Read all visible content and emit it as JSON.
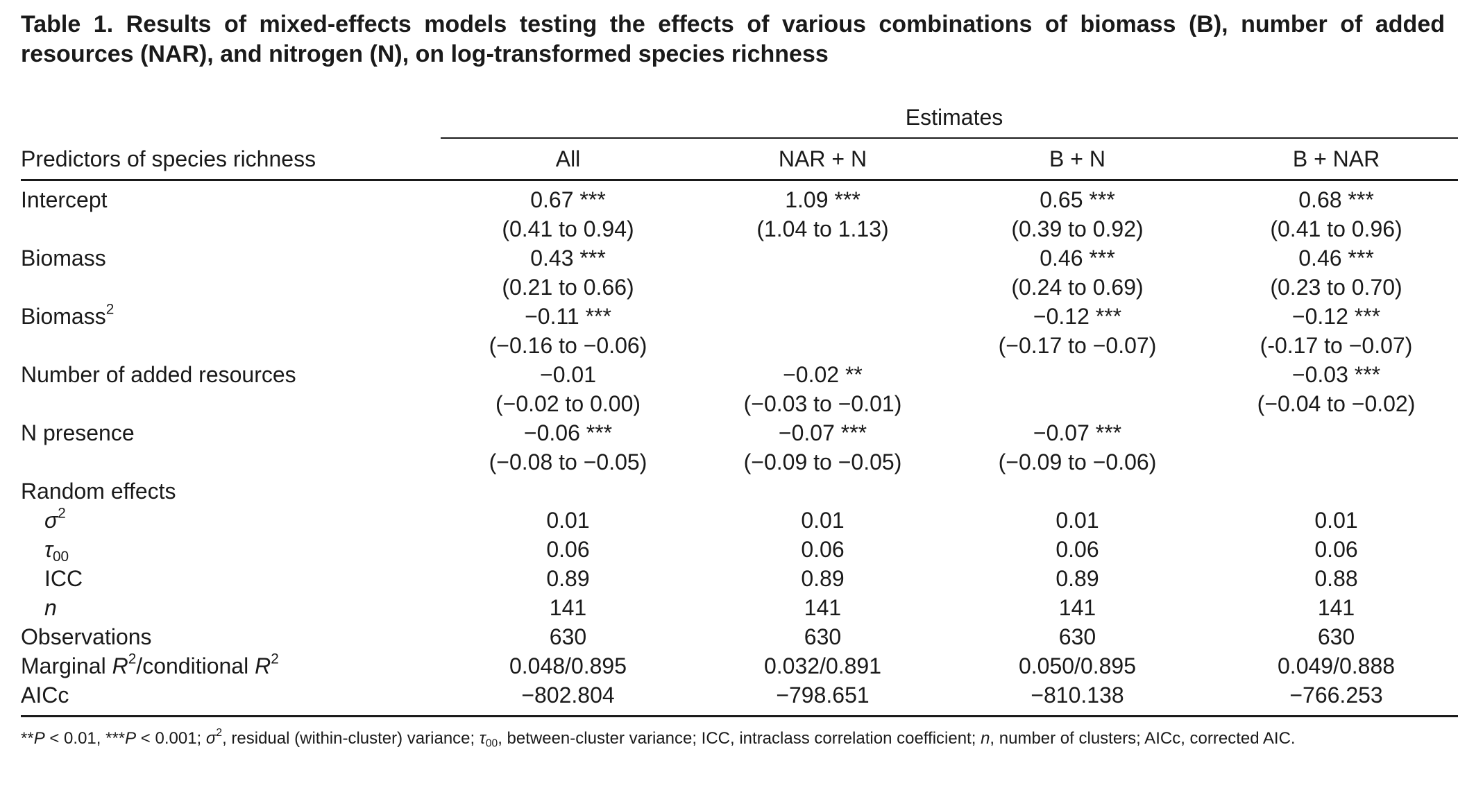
{
  "title": "Table 1. Results of mixed-effects models testing the effects of various combinations of biomass (B), number of added resources (NAR), and nitrogen (N), on log-transformed species richness",
  "header": {
    "group_label": "Estimates",
    "first_col": "Predictors of species richness",
    "columns": [
      "All",
      "NAR + N",
      "B + N",
      "B + NAR"
    ]
  },
  "rows": {
    "intercept": {
      "label": "Intercept",
      "est": [
        "0.67 ***",
        "1.09 ***",
        "0.65 ***",
        "0.68 ***"
      ],
      "ci": [
        "(0.41 to 0.94)",
        "(1.04 to 1.13)",
        "(0.39 to 0.92)",
        "(0.41 to 0.96)"
      ]
    },
    "biomass": {
      "label": "Biomass",
      "est": [
        "0.43 ***",
        "",
        "0.46 ***",
        "0.46 ***"
      ],
      "ci": [
        "(0.21 to 0.66)",
        "",
        "(0.24 to 0.69)",
        "(0.23 to 0.70)"
      ]
    },
    "biomass2": {
      "label": "Biomass",
      "sup": "2",
      "est": [
        "−0.11 ***",
        "",
        "−0.12 ***",
        "−0.12 ***"
      ],
      "ci": [
        "(−0.16 to −0.06)",
        "",
        "(−0.17 to −0.07)",
        "(-0.17 to −0.07)"
      ]
    },
    "nar": {
      "label": "Number of added resources",
      "est": [
        "−0.01",
        "−0.02 **",
        "",
        "−0.03 ***"
      ],
      "ci": [
        "(−0.02 to 0.00)",
        "(−0.03 to −0.01)",
        "",
        "(−0.04 to −0.02)"
      ]
    },
    "npresence": {
      "label": "N presence",
      "est": [
        "−0.06 ***",
        "−0.07 ***",
        "−0.07 ***",
        ""
      ],
      "ci": [
        "(−0.08 to −0.05)",
        "(−0.09 to −0.05)",
        "(−0.09 to −0.06)",
        ""
      ]
    }
  },
  "random_effects": {
    "label": "Random effects",
    "sigma2": {
      "symbol": "σ",
      "sup": "2",
      "values": [
        "0.01",
        "0.01",
        "0.01",
        "0.01"
      ]
    },
    "tau00": {
      "symbol": "τ",
      "sub": "00",
      "values": [
        "0.06",
        "0.06",
        "0.06",
        "0.06"
      ]
    },
    "icc": {
      "label": "ICC",
      "values": [
        "0.89",
        "0.89",
        "0.89",
        "0.88"
      ]
    },
    "n": {
      "label": "n",
      "values": [
        "141",
        "141",
        "141",
        "141"
      ]
    }
  },
  "observations": {
    "label": "Observations",
    "values": [
      "630",
      "630",
      "630",
      "630"
    ]
  },
  "r2": {
    "label_a": "Marginal ",
    "label_r1": "R",
    "sup1": "2",
    "label_b": "/conditional ",
    "label_r2": "R",
    "sup2": "2",
    "values": [
      "0.048/0.895",
      "0.032/0.891",
      "0.050/0.895",
      "0.049/0.888"
    ]
  },
  "aicc": {
    "label": "AICc",
    "values": [
      "−802.804",
      "−798.651",
      "−810.138",
      "−766.253"
    ]
  },
  "footnote": {
    "p1_stars": "**",
    "p_sym": "P",
    "p1_rest": " < 0.01, ***",
    "p2_rest": " < 0.001; ",
    "sigma": "σ",
    "sup2": "2",
    "s1": ", residual (within-cluster) variance; ",
    "tau": "τ",
    "sub00": "00",
    "s2": ", between-cluster variance; ICC, intraclass correlation coefficient; ",
    "n": "n",
    "s3": ", number of clusters; AICc, corrected AIC."
  }
}
